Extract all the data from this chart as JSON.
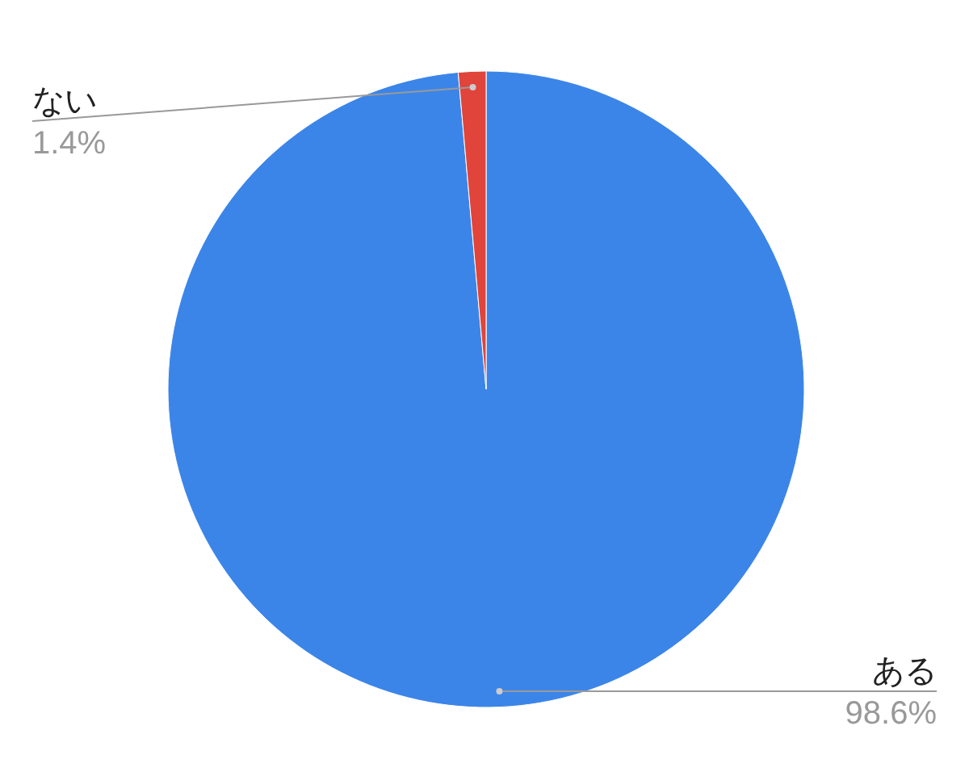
{
  "chart_data": {
    "type": "pie",
    "categories": [
      "ある",
      "ない"
    ],
    "values": [
      98.6,
      1.4
    ],
    "colors": [
      "#3c85e8",
      "#e0443a"
    ],
    "value_labels": [
      "98.6%",
      "1.4%"
    ]
  }
}
